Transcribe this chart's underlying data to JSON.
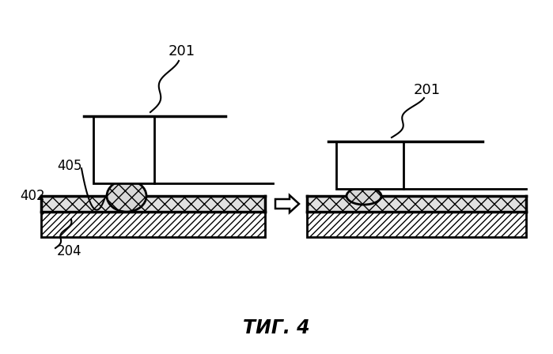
{
  "title": "ΤИГ. 4",
  "bg_color": "#ffffff",
  "label_201_left": "201",
  "label_201_right": "201",
  "label_402": "402",
  "label_405": "405",
  "label_204": "204"
}
